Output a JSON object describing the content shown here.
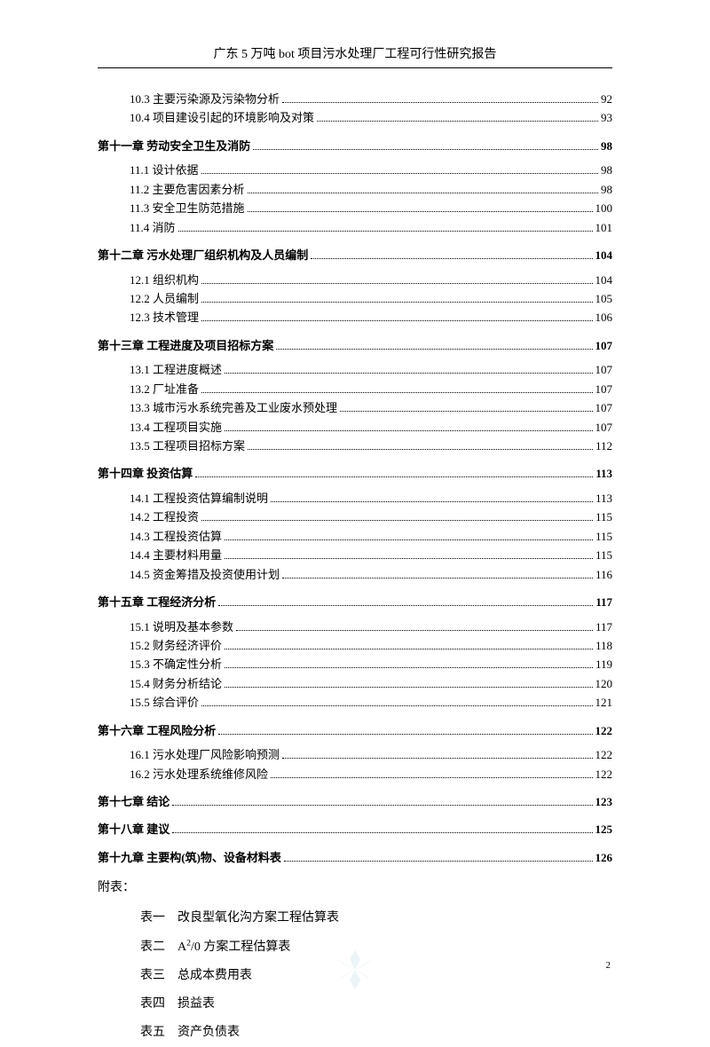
{
  "header": {
    "title": "广东 5 万吨 bot 项目污水处理厂工程可行性研究报告"
  },
  "toc": [
    {
      "type": "sub",
      "label": "10.3 主要污染源及污染物分析",
      "page": "92"
    },
    {
      "type": "sub",
      "label": "10.4 项目建设引起的环境影响及对策",
      "page": "93"
    },
    {
      "type": "chapter",
      "label": "第十一章  劳动安全卫生及消防",
      "page": "98"
    },
    {
      "type": "sub",
      "label": "11.1 设计依据",
      "page": "98"
    },
    {
      "type": "sub",
      "label": "11.2 主要危害因素分析",
      "page": "98"
    },
    {
      "type": "sub",
      "label": "11.3 安全卫生防范措施",
      "page": "100"
    },
    {
      "type": "sub",
      "label": "11.4 消防",
      "page": "101"
    },
    {
      "type": "chapter",
      "label": "第十二章  污水处理厂组织机构及人员编制",
      "page": "104"
    },
    {
      "type": "sub",
      "label": "12.1 组织机构",
      "page": "104"
    },
    {
      "type": "sub",
      "label": "12.2 人员编制",
      "page": "105"
    },
    {
      "type": "sub",
      "label": "12.3 技术管理",
      "page": "106"
    },
    {
      "type": "chapter",
      "label": "第十三章  工程进度及项目招标方案",
      "page": "107"
    },
    {
      "type": "sub",
      "label": "13.1 工程进度概述",
      "page": "107"
    },
    {
      "type": "sub",
      "label": "13.2 厂址准备",
      "page": "107"
    },
    {
      "type": "sub",
      "label": "13.3 城市污水系统完善及工业废水预处理",
      "page": "107"
    },
    {
      "type": "sub",
      "label": "13.4 工程项目实施",
      "page": "107"
    },
    {
      "type": "sub",
      "label": "13.5 工程项目招标方案",
      "page": "112"
    },
    {
      "type": "chapter",
      "label": "第十四章  投资估算",
      "page": "113"
    },
    {
      "type": "sub",
      "label": "14.1 工程投资估算编制说明",
      "page": "113"
    },
    {
      "type": "sub",
      "label": "14.2 工程投资",
      "page": "115"
    },
    {
      "type": "sub",
      "label": "14.3 工程投资估算",
      "page": "115"
    },
    {
      "type": "sub",
      "label": "14.4 主要材料用量",
      "page": "115"
    },
    {
      "type": "sub",
      "label": "14.5 资金筹措及投资使用计划",
      "page": "116"
    },
    {
      "type": "chapter",
      "label": "第十五章  工程经济分析",
      "page": "117"
    },
    {
      "type": "sub",
      "label": "15.1 说明及基本参数",
      "page": "117"
    },
    {
      "type": "sub",
      "label": "15.2 财务经济评价",
      "page": "118"
    },
    {
      "type": "sub",
      "label": "15.3 不确定性分析",
      "page": "119"
    },
    {
      "type": "sub",
      "label": "15.4 财务分析结论",
      "page": "120"
    },
    {
      "type": "sub",
      "label": "15.5 综合评价",
      "page": "121"
    },
    {
      "type": "chapter",
      "label": "第十六章  工程风险分析",
      "page": "122"
    },
    {
      "type": "sub",
      "label": "16.1 污水处理厂风险影响预测",
      "page": "122"
    },
    {
      "type": "sub",
      "label": "16.2 污水处理系统维修风险",
      "page": "122"
    },
    {
      "type": "chapter",
      "label": "第十七章  结论",
      "page": "123"
    },
    {
      "type": "chapter",
      "label": "第十八章  建议",
      "page": "125"
    },
    {
      "type": "chapter",
      "label": "第十九章  主要构(筑)物、设备材料表",
      "page": "126"
    }
  ],
  "appendix": {
    "title": "附表：",
    "items": [
      {
        "prefix": "表一",
        "text": "改良型氧化沟方案工程估算表"
      },
      {
        "prefix": "表二",
        "text": "A²/0 方案工程估算表",
        "html": true
      },
      {
        "prefix": "表三",
        "text": "总成本费用表"
      },
      {
        "prefix": "表四",
        "text": "损益表"
      },
      {
        "prefix": "表五",
        "text": "资产负债表"
      }
    ]
  },
  "page_number": "2",
  "colors": {
    "text": "#000000",
    "bg": "#ffffff",
    "watermark": "#6aa9c4"
  }
}
